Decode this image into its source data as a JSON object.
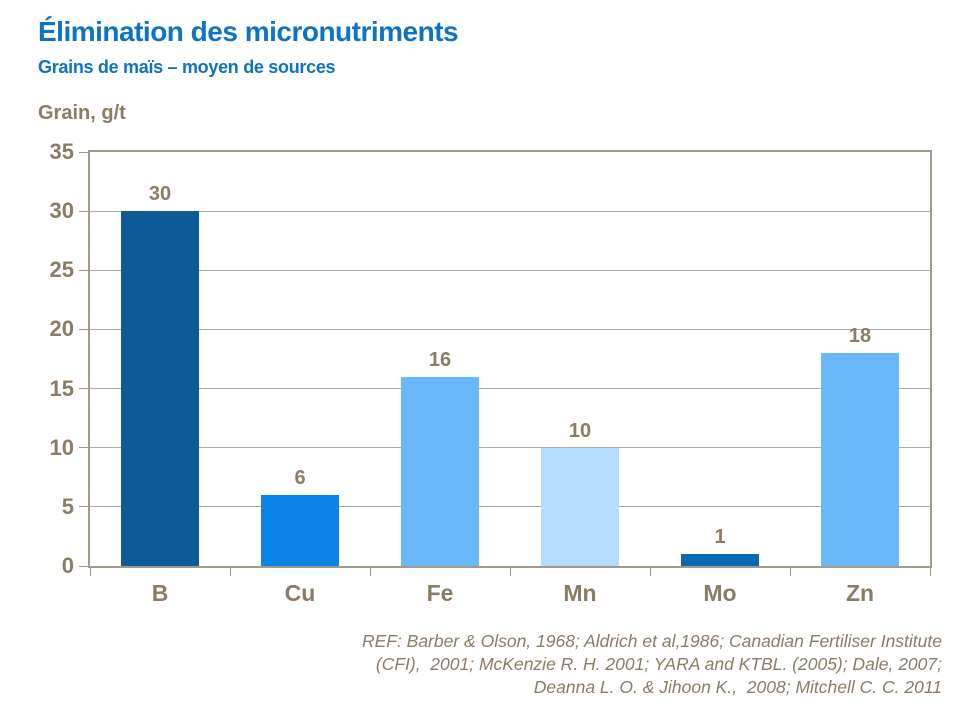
{
  "header": {
    "title": "Élimination des micronutriments",
    "subtitle": "Grains de maïs – moyen de sources"
  },
  "chart_data": {
    "type": "bar",
    "title": "Élimination des micronutriments",
    "subtitle": "Grains de maïs – moyen de sources",
    "y_axis_title": "Grain, g/t",
    "categories": [
      "B",
      "Cu",
      "Fe",
      "Mn",
      "Mo",
      "Zn"
    ],
    "values": [
      30,
      6,
      16,
      10,
      1,
      18
    ],
    "bar_colors": [
      "#0d5a99",
      "#0a84e6",
      "#69b9fa",
      "#b6dcfc",
      "#0a69b5",
      "#69b9fa"
    ],
    "ylim": [
      0,
      35
    ],
    "ytick_step": 5,
    "ytick_labels": [
      "0",
      "5",
      "10",
      "15",
      "20",
      "25",
      "30",
      "35"
    ],
    "grid": true,
    "legend": false,
    "data_labels": true
  },
  "footer": {
    "reference_lines": [
      "REF: Barber & Olson, 1968; Aldrich et al,1986; Canadian Fertiliser Institute",
      "(CFI),  2001; McKenzie R. H. 2001; YARA and KTBL. (2005); Dale, 2007;",
      "Deanna L. O. & Jihoon K.,  2008; Mitchell C. C. 2011"
    ]
  },
  "colors": {
    "title_blue": "#0d74c5",
    "axis_text": "#8b7c64",
    "grid_line": "#b2aa9a",
    "axis_line": "#a29a8b",
    "background": "#ffffff"
  }
}
